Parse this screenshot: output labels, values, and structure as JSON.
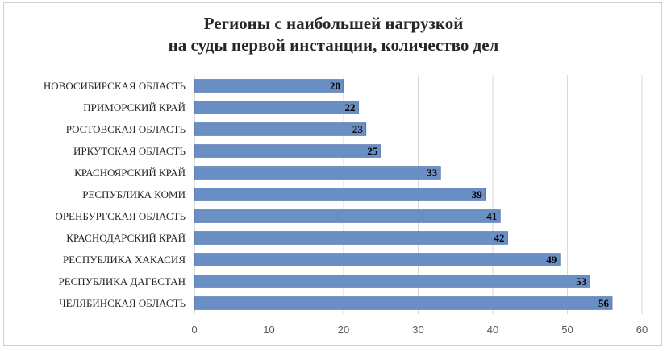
{
  "chart_data": {
    "type": "bar",
    "orientation": "horizontal",
    "title_line1": "Регионы с наибольшей нагрузкой",
    "title_line2": "на суды первой инстанции, количество дел",
    "categories": [
      "НОВОСИБИРСКАЯ ОБЛАСТЬ",
      "ПРИМОРСКИЙ КРАЙ",
      "РОСТОВСКАЯ ОБЛАСТЬ",
      "ИРКУТСКАЯ ОБЛАСТЬ",
      "КРАСНОЯРСКИЙ КРАЙ",
      "РЕСПУБЛИКА КОМИ",
      "ОРЕНБУРГСКАЯ ОБЛАСТЬ",
      "КРАСНОДАРСКИЙ КРАЙ",
      "РЕСПУБЛИКА ХАКАСИЯ",
      "РЕСПУБЛИКА ДАГЕСТАН",
      "ЧЕЛЯБИНСКАЯ ОБЛАСТЬ"
    ],
    "values": [
      20,
      22,
      23,
      25,
      33,
      39,
      41,
      42,
      49,
      53,
      56
    ],
    "xlim": [
      0,
      60
    ],
    "xticks": [
      "0",
      "10",
      "20",
      "30",
      "40",
      "50",
      "60"
    ],
    "grid": true,
    "legend": "none",
    "bar_color": "#6a8fc5",
    "bar_border_color": "#4a6fa5",
    "data_labels": true
  }
}
